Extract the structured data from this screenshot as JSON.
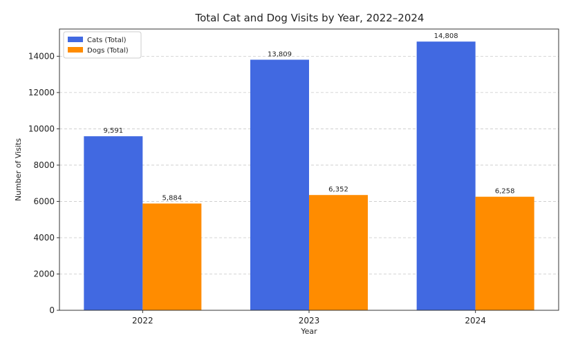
{
  "chart_data": {
    "type": "bar",
    "title": "Total Cat and Dog Visits by Year, 2022–2024",
    "xlabel": "Year",
    "ylabel": "Number of Visits",
    "categories": [
      "2022",
      "2023",
      "2024"
    ],
    "series": [
      {
        "name": "Cats (Total)",
        "color": "#4169E1",
        "values": [
          9591,
          13809,
          14808
        ],
        "labels": [
          "9,591",
          "13,809",
          "14,808"
        ]
      },
      {
        "name": "Dogs (Total)",
        "color": "#FF8C00",
        "values": [
          5884,
          6352,
          6258
        ],
        "labels": [
          "5,884",
          "6,352",
          "6,258"
        ]
      }
    ],
    "ylim": [
      0,
      15500
    ],
    "yticks": [
      0,
      2000,
      4000,
      6000,
      8000,
      10000,
      12000,
      14000
    ],
    "grid": true,
    "legend_position": "top-left"
  }
}
